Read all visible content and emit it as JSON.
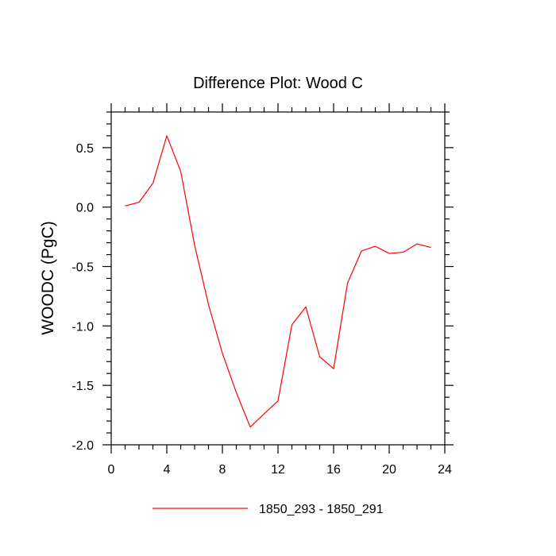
{
  "chart_data": {
    "type": "line",
    "title": "Difference Plot: Wood C",
    "xlabel": "",
    "ylabel": "WOODC  (PgC)",
    "xlim": [
      0,
      24
    ],
    "ylim": [
      -2.0,
      0.8
    ],
    "x_major_ticks": [
      0,
      4,
      8,
      12,
      16,
      20,
      24
    ],
    "x_tick_labels": [
      "0",
      "4",
      "8",
      "12",
      "16",
      "20",
      "24"
    ],
    "y_major_ticks": [
      -2.0,
      -1.5,
      -1.0,
      -0.5,
      0.0,
      0.5
    ],
    "y_tick_labels": [
      "-2.0",
      "-1.5",
      "-1.0",
      "-0.5",
      "0.0",
      "0.5"
    ],
    "grid": false,
    "legend_position": "bottom",
    "series": [
      {
        "name": "1850_293 - 1850_291",
        "color": "#ff0000",
        "x": [
          1,
          2,
          3,
          4,
          5,
          6,
          7,
          8,
          9,
          10,
          11,
          12,
          13,
          14,
          15,
          16,
          17,
          18,
          19,
          20,
          21,
          22,
          23
        ],
        "y": [
          0.01,
          0.04,
          0.2,
          0.6,
          0.3,
          -0.32,
          -0.82,
          -1.23,
          -1.56,
          -1.85,
          -1.74,
          -1.63,
          -0.99,
          -0.84,
          -1.26,
          -1.36,
          -0.64,
          -0.37,
          -0.33,
          -0.39,
          -0.38,
          -0.31,
          -0.34
        ]
      }
    ]
  }
}
